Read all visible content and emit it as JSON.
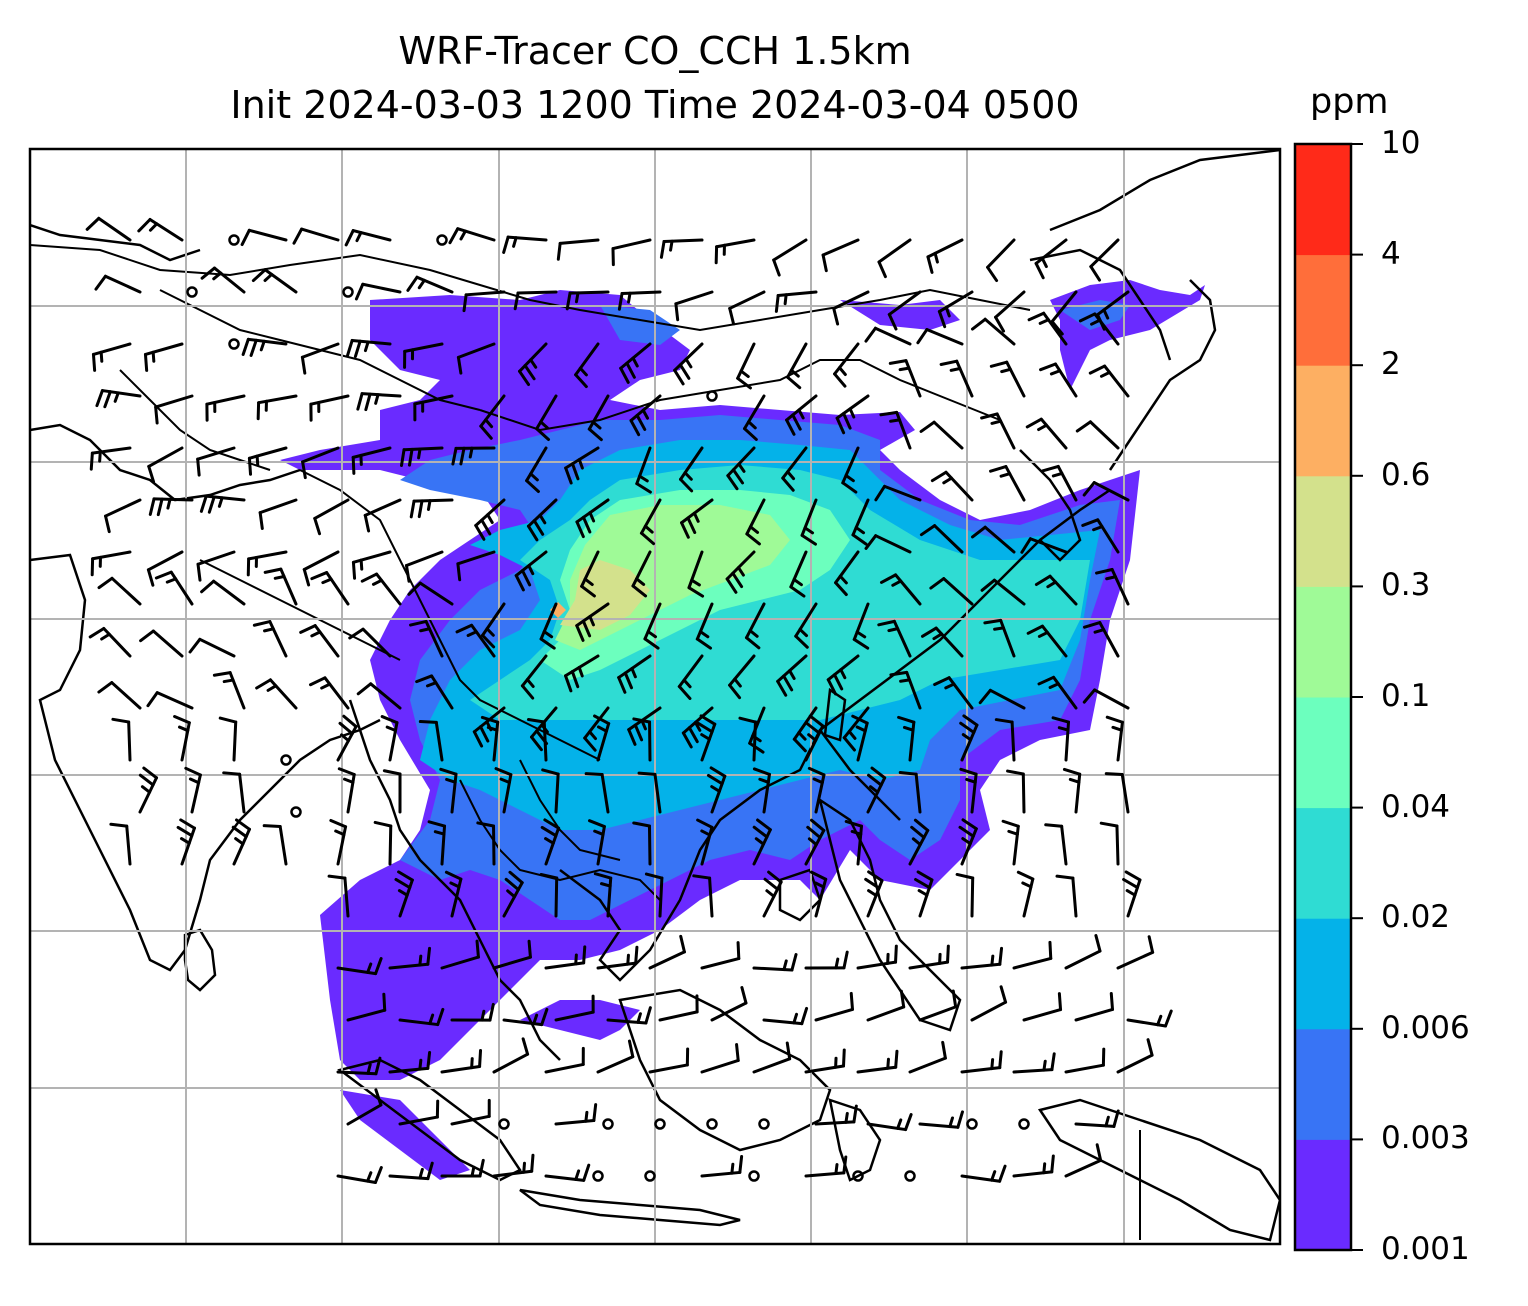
{
  "title_line1": "WRF-Tracer CO_CCH 1.5km",
  "title_line2": "Init 2024-03-03 1200 Time 2024-03-04 0500",
  "colorbar": {
    "unit": "ppm",
    "levels": [
      "0.001",
      "0.003",
      "0.006",
      "0.02",
      "0.04",
      "0.1",
      "0.3",
      "0.6",
      "2",
      "4",
      "10"
    ],
    "colors": [
      "#6a2bff",
      "#3874f5",
      "#04b2e9",
      "#2fdcd3",
      "#6cffbe",
      "#9ffa97",
      "#d3e18c",
      "#fdaf62",
      "#ff6e3a",
      "#ff2a19"
    ]
  },
  "map": {
    "gridlines": true,
    "features": [
      "coastlines",
      "country-borders",
      "wind-barbs",
      "calm-circles"
    ],
    "plume_colors": [
      "#6a2bff",
      "#3874f5",
      "#04b2e9",
      "#2fdcd3",
      "#6cffbe",
      "#9ffa97",
      "#d3e18c",
      "#fdaf62"
    ]
  }
}
